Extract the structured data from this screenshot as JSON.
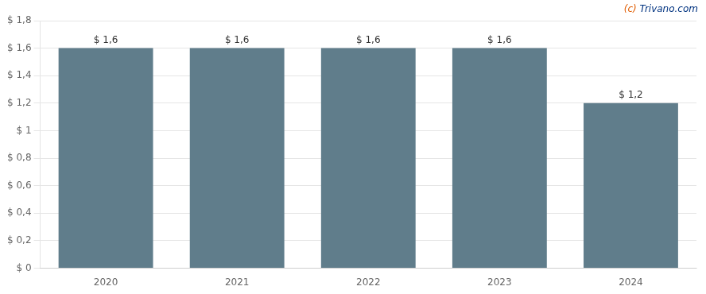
{
  "chart_data": {
    "type": "bar",
    "categories": [
      "2020",
      "2021",
      "2022",
      "2023",
      "2024"
    ],
    "values": [
      1.6,
      1.6,
      1.6,
      1.6,
      1.2
    ],
    "value_labels": [
      "$ 1,6",
      "$ 1,6",
      "$ 1,6",
      "$ 1,6",
      "$ 1,2"
    ],
    "data_labels": true,
    "color": "#607d8b",
    "ylim": [
      0,
      1.8
    ],
    "yticks": [
      {
        "value": 0,
        "label": "$ 0"
      },
      {
        "value": 0.2,
        "label": "$ 0,2"
      },
      {
        "value": 0.4,
        "label": "$ 0,4"
      },
      {
        "value": 0.6,
        "label": "$ 0,6"
      },
      {
        "value": 0.8,
        "label": "$ 0,8"
      },
      {
        "value": 1.0,
        "label": "$ 1"
      },
      {
        "value": 1.2,
        "label": "$ 1,2"
      },
      {
        "value": 1.4,
        "label": "$ 1,4"
      },
      {
        "value": 1.6,
        "label": "$ 1,6"
      },
      {
        "value": 1.8,
        "label": "$ 1,8"
      }
    ],
    "grid": true,
    "annotations": [
      {
        "text": "(c)",
        "color": "#e05c00"
      },
      {
        "text": "Trivano.com",
        "color": "#003380"
      }
    ]
  }
}
